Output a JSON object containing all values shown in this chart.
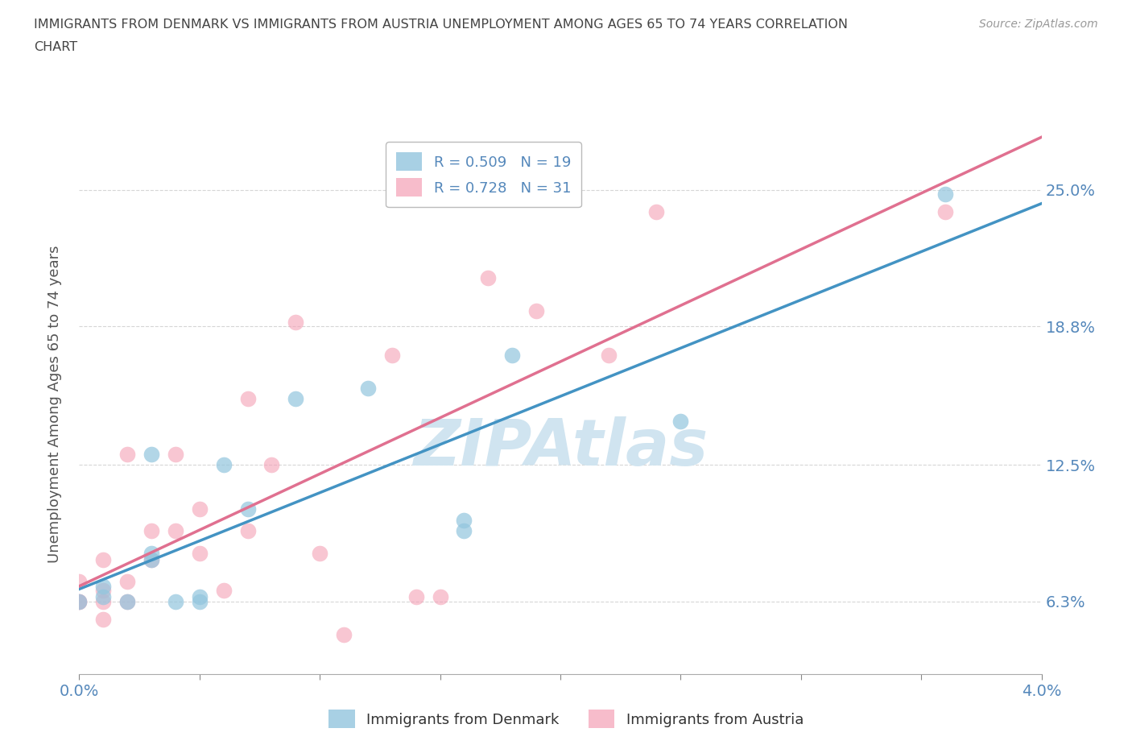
{
  "title_line1": "IMMIGRANTS FROM DENMARK VS IMMIGRANTS FROM AUSTRIA UNEMPLOYMENT AMONG AGES 65 TO 74 YEARS CORRELATION",
  "title_line2": "CHART",
  "source": "Source: ZipAtlas.com",
  "ylabel": "Unemployment Among Ages 65 to 74 years",
  "legend_denmark": "Immigrants from Denmark",
  "legend_austria": "Immigrants from Austria",
  "r_denmark": "R = 0.509",
  "n_denmark": "N = 19",
  "r_austria": "R = 0.728",
  "n_austria": "N = 31",
  "color_denmark": "#92c5de",
  "color_austria": "#f4a0b5",
  "line_color_denmark": "#4393c3",
  "line_color_austria": "#e07090",
  "watermark": "ZIPAtlas",
  "xlim": [
    0.0,
    0.04
  ],
  "ylim": [
    0.03,
    0.275
  ],
  "yticks": [
    0.063,
    0.125,
    0.188,
    0.25
  ],
  "ytick_labels": [
    "6.3%",
    "12.5%",
    "18.8%",
    "25.0%"
  ],
  "xticks": [
    0.0,
    0.005,
    0.01,
    0.015,
    0.02,
    0.025,
    0.03,
    0.035,
    0.04
  ],
  "xtick_labels_show": [
    0.0,
    0.04
  ],
  "xtick_labels": [
    "0.0%",
    "",
    "",
    "",
    "",
    "",
    "",
    "",
    "4.0%"
  ],
  "denmark_x": [
    0.0,
    0.001,
    0.001,
    0.002,
    0.003,
    0.003,
    0.003,
    0.004,
    0.005,
    0.005,
    0.006,
    0.007,
    0.009,
    0.012,
    0.016,
    0.016,
    0.018,
    0.025,
    0.036
  ],
  "denmark_y": [
    0.063,
    0.065,
    0.07,
    0.063,
    0.082,
    0.085,
    0.13,
    0.063,
    0.065,
    0.063,
    0.125,
    0.105,
    0.155,
    0.16,
    0.095,
    0.1,
    0.175,
    0.145,
    0.248
  ],
  "austria_x": [
    0.0,
    0.0,
    0.0,
    0.001,
    0.001,
    0.001,
    0.001,
    0.002,
    0.002,
    0.002,
    0.003,
    0.003,
    0.004,
    0.004,
    0.005,
    0.005,
    0.006,
    0.007,
    0.007,
    0.008,
    0.009,
    0.01,
    0.011,
    0.013,
    0.014,
    0.015,
    0.017,
    0.019,
    0.022,
    0.024,
    0.036
  ],
  "austria_y": [
    0.063,
    0.063,
    0.072,
    0.055,
    0.063,
    0.068,
    0.082,
    0.063,
    0.072,
    0.13,
    0.082,
    0.095,
    0.095,
    0.13,
    0.085,
    0.105,
    0.068,
    0.095,
    0.155,
    0.125,
    0.19,
    0.085,
    0.048,
    0.175,
    0.065,
    0.065,
    0.21,
    0.195,
    0.175,
    0.24,
    0.24
  ],
  "background_color": "#ffffff",
  "grid_color": "#cccccc",
  "title_color": "#444444",
  "axis_label_color": "#555555",
  "tick_color": "#5588bb",
  "watermark_color": "#d0e4f0"
}
